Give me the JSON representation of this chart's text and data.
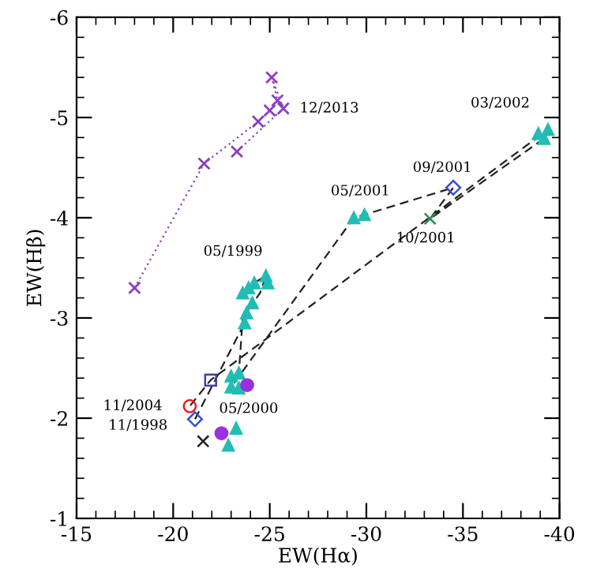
{
  "chart_data": {
    "type": "scatter",
    "xlabel": "EW(Hα)",
    "ylabel": "EW(Hβ)",
    "xlim": [
      -15,
      -40
    ],
    "ylim": [
      -1,
      -6
    ],
    "xticks": [
      -15,
      -20,
      -25,
      -30,
      -35,
      -40
    ],
    "yticks": [
      -1,
      -2,
      -3,
      -4,
      -5,
      -6
    ],
    "grid": false,
    "legend": false,
    "series": [
      {
        "type": "line",
        "color": "#8a3fc0",
        "marker": "cross",
        "line_style": "dotted",
        "x": [
          -18,
          -21.6,
          -24.4,
          -25.0,
          -25.4,
          -25.1,
          -25.7,
          -23.3
        ],
        "values": [
          -3.3,
          -4.54,
          -4.96,
          -5.07,
          -5.17,
          -5.4,
          -5.09,
          -4.66
        ]
      },
      {
        "type": "line",
        "color": "#222222",
        "marker": "none",
        "line_style": "dashed",
        "x": [
          -21.13,
          -23.7,
          -23.8,
          -24.1,
          -23.9,
          -24.2,
          -24.8,
          -24.5,
          -23.6,
          -23.4,
          -23.0,
          -23.0,
          -29.35,
          -29.9,
          -34.5,
          -33.3,
          -39.2,
          -39.4,
          -21.94,
          -20.86
        ],
        "values": [
          -1.99,
          -2.95,
          -3.05,
          -3.15,
          -3.3,
          -3.35,
          -3.42,
          -3.25,
          -3.0,
          -2.45,
          -2.42,
          -2.31,
          -4.0,
          -4.03,
          -4.3,
          -3.99,
          -4.79,
          -4.88,
          -2.38,
          -2.12
        ]
      },
      {
        "color": "#20bdb5",
        "marker": "triangle",
        "x": [
          -24.8,
          -24.9,
          -24.2,
          -23.9,
          -24.1,
          -23.6,
          -23.8,
          -23.7,
          -23.0,
          -23.0,
          -23.4,
          -23.4,
          -29.35,
          -29.9,
          -38.9,
          -39.2,
          -39.4,
          -23.26,
          -22.86
        ],
        "values": [
          -3.42,
          -3.35,
          -3.35,
          -3.3,
          -3.15,
          -3.25,
          -3.05,
          -2.95,
          -2.42,
          -2.31,
          -2.3,
          -2.45,
          -4.0,
          -4.03,
          -4.84,
          -4.79,
          -4.88,
          -1.9,
          -1.73
        ]
      },
      {
        "color": "#3a4fd0",
        "marker": "diamond",
        "x": [
          -21.13,
          -34.5
        ],
        "values": [
          -1.99,
          -4.3
        ]
      },
      {
        "color": "#2a8a50",
        "marker": "cross",
        "x": [
          -33.3
        ],
        "values": [
          -3.99
        ]
      },
      {
        "color": "#4040b0",
        "marker": "square",
        "x": [
          -21.94
        ],
        "values": [
          -2.38
        ]
      },
      {
        "color": "#e02020",
        "marker": "circle",
        "x": [
          -20.86
        ],
        "values": [
          -2.12
        ]
      },
      {
        "color": "#9b30e0",
        "marker": "circle",
        "x": [
          -23.83,
          -22.5
        ],
        "values": [
          -2.33,
          -1.85
        ]
      },
      {
        "color": "#222222",
        "marker": "cross",
        "x": [
          -21.55
        ],
        "values": [
          -1.77
        ]
      }
    ],
    "annotations": [
      {
        "text": "12/2013",
        "x": -25.7,
        "y": -5.09
      },
      {
        "text": "03/2002",
        "x": -39.2,
        "y": -4.79
      },
      {
        "text": "09/2001",
        "x": -34.5,
        "y": -4.3
      },
      {
        "text": "05/2001",
        "x": -29.35,
        "y": -4.0
      },
      {
        "text": "10/2001",
        "x": -33.3,
        "y": -3.99
      },
      {
        "text": "05/1999",
        "x": -24.8,
        "y": -3.42
      },
      {
        "text": "11/2004",
        "x": -20.86,
        "y": -2.12
      },
      {
        "text": "05/2000",
        "x": -23.0,
        "y": -2.31
      },
      {
        "text": "11/1998",
        "x": -21.13,
        "y": -1.99
      }
    ]
  }
}
